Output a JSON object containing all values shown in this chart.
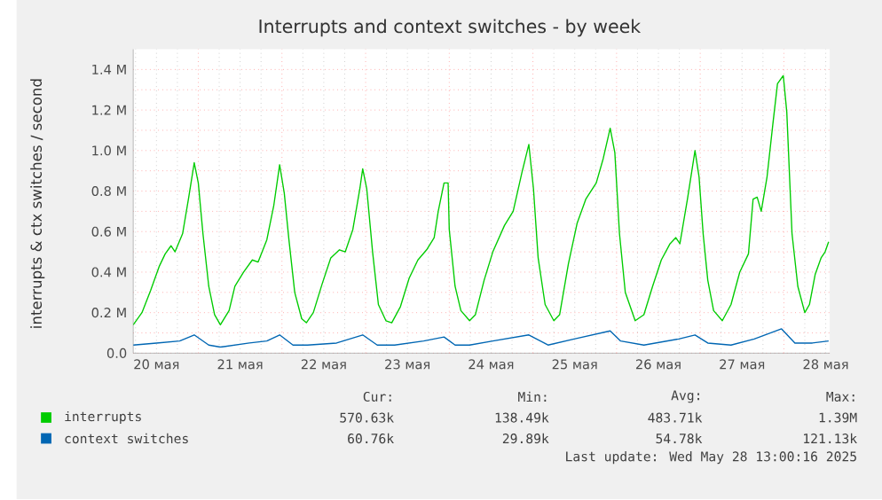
{
  "chart_data": {
    "type": "line",
    "title": "Interrupts and context switches - by week",
    "ylabel": "interrupts & ctx switches / second",
    "xlim": [
      "2025-05-20T05:20",
      "2025-05-28T13:10"
    ],
    "ylim": [
      0,
      1.5
    ],
    "xticks": [
      {
        "value": "2025-05-20T12:00",
        "label": "20 мая"
      },
      {
        "value": "2025-05-21T12:00",
        "label": "21 мая"
      },
      {
        "value": "2025-05-22T12:00",
        "label": "22 мая"
      },
      {
        "value": "2025-05-23T12:00",
        "label": "23 мая"
      },
      {
        "value": "2025-05-24T12:00",
        "label": "24 мая"
      },
      {
        "value": "2025-05-25T12:00",
        "label": "25 мая"
      },
      {
        "value": "2025-05-26T12:00",
        "label": "26 мая"
      },
      {
        "value": "2025-05-27T12:00",
        "label": "27 мая"
      },
      {
        "value": "2025-05-28T12:00",
        "label": "28 мая"
      },
      {
        "value": "2025-05-21T00:00",
        "label": null
      },
      {
        "value": "2025-05-22T00:00",
        "label": null
      },
      {
        "value": "2025-05-23T00:00",
        "label": null
      },
      {
        "value": "2025-05-24T00:00",
        "label": null
      },
      {
        "value": "2025-05-25T00:00",
        "label": null
      },
      {
        "value": "2025-05-26T00:00",
        "label": null
      },
      {
        "value": "2025-05-27T00:00",
        "label": null
      },
      {
        "value": "2025-05-28T00:00",
        "label": null
      }
    ],
    "yticks": [
      {
        "value": 0,
        "label": "0.0"
      },
      {
        "value": 0.2,
        "label": "0.2 M"
      },
      {
        "value": 0.4,
        "label": "0.4 M"
      },
      {
        "value": 0.6,
        "label": "0.6 M"
      },
      {
        "value": 0.8,
        "label": "0.8 M"
      },
      {
        "value": 1.0,
        "label": "1.0 M"
      },
      {
        "value": 1.2,
        "label": "1.2 M"
      },
      {
        "value": 1.4,
        "label": "1.4 M"
      }
    ],
    "grid": true,
    "legend": "bottom",
    "series": [
      {
        "name": "interrupts",
        "color": "#00cc00",
        "x": [
          "2025-05-20T05:20",
          "2025-05-20T07:50",
          "2025-05-20T10:20",
          "2025-05-20T12:50",
          "2025-05-20T14:30",
          "2025-05-20T16:10",
          "2025-05-20T17:20",
          "2025-05-20T19:30",
          "2025-05-20T21:10",
          "2025-05-20T22:50",
          "2025-05-21T00:00",
          "2025-05-21T01:20",
          "2025-05-21T03:00",
          "2025-05-21T04:40",
          "2025-05-21T06:20",
          "2025-05-21T08:50",
          "2025-05-21T10:30",
          "2025-05-21T13:00",
          "2025-05-21T15:30",
          "2025-05-21T17:10",
          "2025-05-21T19:40",
          "2025-05-21T21:40",
          "2025-05-21T23:20",
          "2025-05-22T00:40",
          "2025-05-22T02:00",
          "2025-05-22T03:40",
          "2025-05-22T05:40",
          "2025-05-22T07:00",
          "2025-05-22T09:00",
          "2025-05-22T11:30",
          "2025-05-22T14:00",
          "2025-05-22T16:30",
          "2025-05-22T18:10",
          "2025-05-22T20:20",
          "2025-05-22T22:20",
          "2025-05-22T23:10",
          "2025-05-23T00:20",
          "2025-05-23T02:00",
          "2025-05-23T03:40",
          "2025-05-23T05:50",
          "2025-05-23T07:30",
          "2025-05-23T10:00",
          "2025-05-23T12:30",
          "2025-05-23T15:00",
          "2025-05-23T17:30",
          "2025-05-23T19:40",
          "2025-05-23T20:50",
          "2025-05-23T22:30",
          "2025-05-23T23:40",
          "2025-05-24T00:00",
          "2025-05-24T01:40",
          "2025-05-24T03:20",
          "2025-05-24T05:50",
          "2025-05-24T07:30",
          "2025-05-24T10:00",
          "2025-05-24T12:30",
          "2025-05-24T15:50",
          "2025-05-24T18:20",
          "2025-05-24T20:50",
          "2025-05-24T22:50",
          "2025-05-25T00:10",
          "2025-05-25T01:30",
          "2025-05-25T03:30",
          "2025-05-25T06:00",
          "2025-05-25T07:40",
          "2025-05-25T10:10",
          "2025-05-25T12:40",
          "2025-05-25T15:10",
          "2025-05-25T18:10",
          "2025-05-25T20:10",
          "2025-05-25T22:10",
          "2025-05-25T23:30",
          "2025-05-26T00:50",
          "2025-05-26T02:30",
          "2025-05-26T05:20",
          "2025-05-26T07:50",
          "2025-05-26T10:20",
          "2025-05-26T12:50",
          "2025-05-26T15:20",
          "2025-05-26T17:00",
          "2025-05-26T18:10",
          "2025-05-26T20:20",
          "2025-05-26T22:30",
          "2025-05-26T23:40",
          "2025-05-27T00:50",
          "2025-05-27T02:10",
          "2025-05-27T03:50",
          "2025-05-27T06:20",
          "2025-05-27T08:50",
          "2025-05-27T11:20",
          "2025-05-27T13:50",
          "2025-05-27T15:10",
          "2025-05-27T16:20",
          "2025-05-27T17:30",
          "2025-05-27T19:10",
          "2025-05-27T20:50",
          "2025-05-27T22:10",
          "2025-05-27T23:50",
          "2025-05-28T00:50",
          "2025-05-28T02:20",
          "2025-05-28T04:00",
          "2025-05-28T06:00",
          "2025-05-28T07:20",
          "2025-05-28T09:00",
          "2025-05-28T10:40",
          "2025-05-28T11:50",
          "2025-05-28T12:50"
        ],
        "values": [
          0.14,
          0.2,
          0.31,
          0.43,
          0.49,
          0.53,
          0.5,
          0.59,
          0.76,
          0.94,
          0.84,
          0.59,
          0.33,
          0.19,
          0.14,
          0.21,
          0.33,
          0.4,
          0.46,
          0.45,
          0.56,
          0.73,
          0.93,
          0.79,
          0.56,
          0.3,
          0.17,
          0.15,
          0.2,
          0.34,
          0.47,
          0.51,
          0.5,
          0.61,
          0.81,
          0.91,
          0.81,
          0.5,
          0.24,
          0.16,
          0.15,
          0.23,
          0.37,
          0.46,
          0.51,
          0.57,
          0.7,
          0.84,
          0.84,
          0.61,
          0.33,
          0.21,
          0.16,
          0.19,
          0.36,
          0.5,
          0.63,
          0.7,
          0.89,
          1.03,
          0.81,
          0.47,
          0.24,
          0.16,
          0.19,
          0.44,
          0.64,
          0.76,
          0.84,
          0.96,
          1.11,
          0.99,
          0.59,
          0.3,
          0.16,
          0.19,
          0.33,
          0.46,
          0.54,
          0.57,
          0.54,
          0.76,
          1.0,
          0.87,
          0.59,
          0.36,
          0.21,
          0.16,
          0.24,
          0.4,
          0.49,
          0.76,
          0.77,
          0.7,
          0.87,
          1.13,
          1.33,
          1.37,
          1.19,
          0.59,
          0.33,
          0.2,
          0.24,
          0.39,
          0.47,
          0.5,
          0.55
        ]
      },
      {
        "name": "context switches",
        "color": "#0066b3",
        "x": [
          "2025-05-20T05:20",
          "2025-05-20T12:00",
          "2025-05-20T18:40",
          "2025-05-20T22:50",
          "2025-05-21T03:00",
          "2025-05-21T06:20",
          "2025-05-21T14:40",
          "2025-05-21T19:40",
          "2025-05-21T23:20",
          "2025-05-22T03:10",
          "2025-05-22T07:20",
          "2025-05-22T15:40",
          "2025-05-22T23:10",
          "2025-05-23T03:20",
          "2025-05-23T08:20",
          "2025-05-23T16:40",
          "2025-05-23T22:30",
          "2025-05-24T01:40",
          "2025-05-24T05:50",
          "2025-05-24T12:30",
          "2025-05-24T22:50",
          "2025-05-25T04:20",
          "2025-05-25T11:50",
          "2025-05-25T22:10",
          "2025-05-26T01:10",
          "2025-05-26T07:50",
          "2025-05-26T17:50",
          "2025-05-26T22:30",
          "2025-05-27T02:10",
          "2025-05-27T08:50",
          "2025-05-27T15:30",
          "2025-05-27T23:20",
          "2025-05-28T03:10",
          "2025-05-28T08:10",
          "2025-05-28T12:50"
        ],
        "values": [
          0.04,
          0.05,
          0.06,
          0.09,
          0.04,
          0.03,
          0.05,
          0.06,
          0.09,
          0.04,
          0.04,
          0.05,
          0.09,
          0.04,
          0.04,
          0.06,
          0.08,
          0.04,
          0.04,
          0.06,
          0.09,
          0.04,
          0.07,
          0.11,
          0.06,
          0.04,
          0.07,
          0.09,
          0.05,
          0.04,
          0.07,
          0.12,
          0.05,
          0.05,
          0.06
        ]
      }
    ],
    "annotations": [
      "Cur:",
      "Min:",
      "Avg:",
      "Max:",
      "570.63k",
      "138.49k",
      "483.71k",
      "1.39M",
      "60.76k",
      "29.89k",
      "54.78k",
      "121.13k",
      "Last update: Wed May 28 13:00:16 2025"
    ]
  }
}
